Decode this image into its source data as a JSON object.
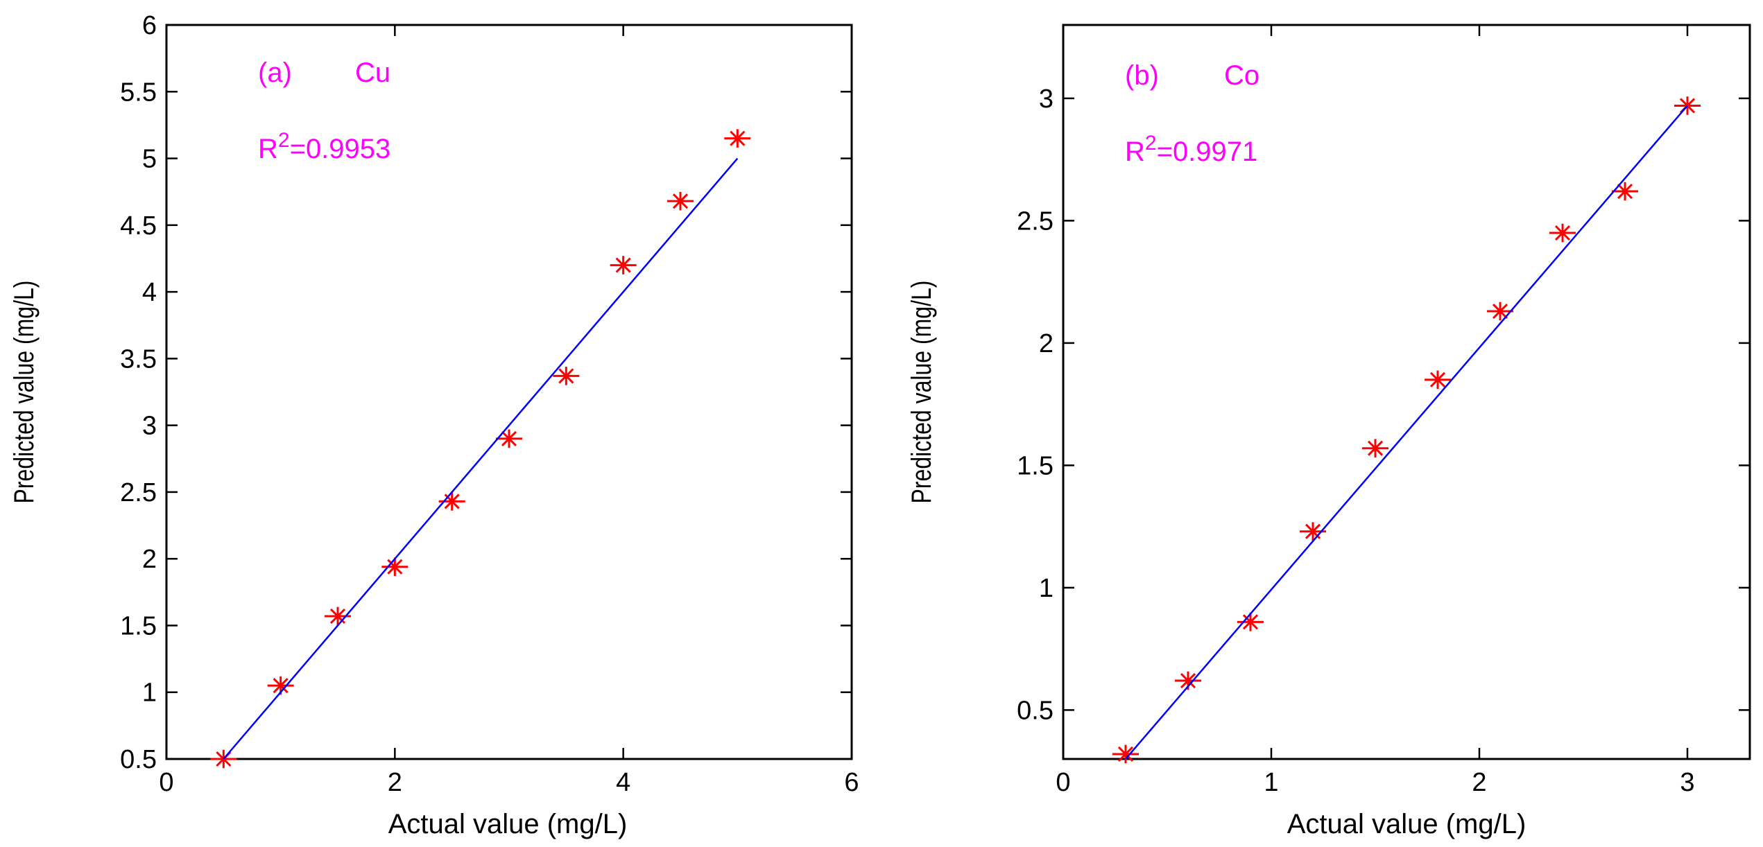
{
  "chart_data": [
    {
      "type": "scatter",
      "panel_label": "(a)",
      "element": "Cu",
      "r2_prefix": "R",
      "r2_sup": "2",
      "r2_value": "=0.9953",
      "xlabel": "Actual value (mg/L)",
      "ylabel": "Predicted value (mg/L)",
      "xlim": [
        0,
        6
      ],
      "ylim": [
        0.5,
        6
      ],
      "xticks": [
        0,
        2,
        4,
        6
      ],
      "yticks": [
        0.5,
        1,
        1.5,
        2,
        2.5,
        3,
        3.5,
        4,
        4.5,
        5,
        5.5,
        6
      ],
      "xtick_labels": [
        "0",
        "2",
        "4",
        "6"
      ],
      "ytick_labels": [
        "0.5",
        "1",
        "1.5",
        "2",
        "2.5",
        "3",
        "3.5",
        "4",
        "4.5",
        "5",
        "5.5",
        "6"
      ],
      "series": [
        {
          "name": "data",
          "marker": "*",
          "color": "#ff0000",
          "x": [
            0.5,
            1.0,
            1.5,
            2.0,
            2.5,
            3.0,
            3.5,
            4.0,
            4.5,
            5.0
          ],
          "y": [
            0.5,
            1.05,
            1.57,
            1.94,
            2.43,
            2.9,
            3.37,
            4.2,
            4.68,
            5.15
          ]
        },
        {
          "name": "fit",
          "line": true,
          "color": "#0000ff",
          "x": [
            0.5,
            5.0
          ],
          "y": [
            0.5,
            5.0
          ]
        }
      ],
      "annotation_color": "#ff00ff"
    },
    {
      "type": "scatter",
      "panel_label": "(b)",
      "element": "Co",
      "r2_prefix": "R",
      "r2_sup": "2",
      "r2_value": "=0.9971",
      "xlabel": "Actual value (mg/L)",
      "ylabel": "Predicted value (mg/L)",
      "xlim": [
        0,
        3.3
      ],
      "ylim": [
        0.3,
        3.3
      ],
      "xticks": [
        0,
        1,
        2,
        3
      ],
      "yticks": [
        0.5,
        1,
        1.5,
        2,
        2.5,
        3
      ],
      "xtick_labels": [
        "0",
        "1",
        "2",
        "3"
      ],
      "ytick_labels": [
        "0.5",
        "1",
        "1.5",
        "2",
        "2.5",
        "3"
      ],
      "series": [
        {
          "name": "data",
          "marker": "*",
          "color": "#ff0000",
          "x": [
            0.3,
            0.6,
            0.9,
            1.2,
            1.5,
            1.8,
            2.1,
            2.4,
            2.7,
            3.0
          ],
          "y": [
            0.32,
            0.62,
            0.86,
            1.23,
            1.57,
            1.85,
            2.13,
            2.45,
            2.62,
            2.97
          ]
        },
        {
          "name": "fit",
          "line": true,
          "color": "#0000ff",
          "x": [
            0.3,
            3.0
          ],
          "y": [
            0.3,
            2.97
          ]
        }
      ],
      "annotation_color": "#ff00ff"
    }
  ]
}
